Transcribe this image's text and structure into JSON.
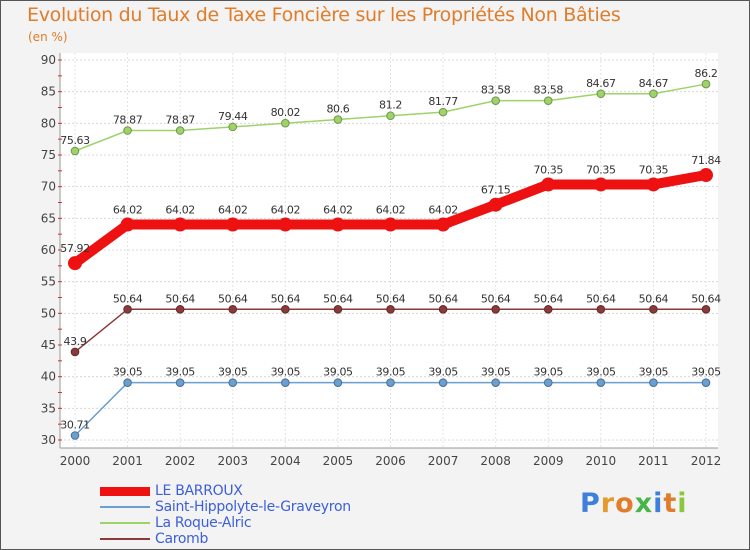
{
  "title": "Evolution du Taux de Taxe Foncière sur les Propriétés Non Bâties",
  "unit_label": "(en %)",
  "logo": {
    "text": "Proxiti",
    "letters": [
      {
        "char": "P",
        "color": "#3d7fd9"
      },
      {
        "char": "r",
        "color": "#e69a2c"
      },
      {
        "char": "o",
        "color": "#e07c2a"
      },
      {
        "char": "x",
        "color": "#47b548"
      },
      {
        "char": "i",
        "color": "#3d7fd9"
      },
      {
        "char": "t",
        "color": "#e07c2a"
      },
      {
        "char": "i",
        "color": "#8cc63f"
      }
    ]
  },
  "chart_data": {
    "type": "line",
    "title": "Evolution du Taux de Taxe Foncière sur les Propriétés Non Bâties",
    "ylabel": "(en %)",
    "xlabel": "",
    "ylim": [
      30,
      90
    ],
    "yticks": [
      30,
      35,
      40,
      45,
      50,
      55,
      60,
      65,
      70,
      75,
      80,
      85,
      90
    ],
    "grid": true,
    "legend_position": "bottom-left",
    "x": [
      "2000",
      "2001",
      "2002",
      "2003",
      "2004",
      "2005",
      "2006",
      "2007",
      "2008",
      "2009",
      "2010",
      "2011",
      "2012"
    ],
    "series": [
      {
        "name": "LE BARROUX",
        "color": "#ee1111",
        "emphasis": true,
        "values": [
          57.92,
          64.02,
          64.02,
          64.02,
          64.02,
          64.02,
          64.02,
          64.02,
          67.15,
          70.35,
          70.35,
          70.35,
          71.84
        ],
        "labels": [
          "57.92",
          "64.02",
          "64.02",
          "64.02",
          "64.02",
          "64.02",
          "64.02",
          "64.02",
          "67.15",
          "70.35",
          "70.35",
          "70.35",
          "71.84"
        ]
      },
      {
        "name": "Saint-Hippolyte-le-Graveyron",
        "color": "#6a9fcf",
        "emphasis": false,
        "values": [
          30.71,
          39.05,
          39.05,
          39.05,
          39.05,
          39.05,
          39.05,
          39.05,
          39.05,
          39.05,
          39.05,
          39.05,
          39.05
        ],
        "labels": [
          "30.71",
          "39.05",
          "39.05",
          "39.05",
          "39.05",
          "39.05",
          "39.05",
          "39.05",
          "39.05",
          "39.05",
          "39.05",
          "39.05",
          "39.05"
        ]
      },
      {
        "name": "La Roque-Alric",
        "color": "#9ed36a",
        "emphasis": false,
        "values": [
          75.63,
          78.87,
          78.87,
          79.44,
          80.02,
          80.6,
          81.2,
          81.77,
          83.58,
          83.58,
          84.67,
          84.67,
          86.2
        ],
        "labels": [
          "75.63",
          "78.87",
          "78.87",
          "79.44",
          "80.02",
          "80.6",
          "81.2",
          "81.77",
          "83.58",
          "83.58",
          "84.67",
          "84.67",
          "86.2"
        ]
      },
      {
        "name": "Caromb",
        "color": "#8b3a3a",
        "emphasis": false,
        "values": [
          43.9,
          50.64,
          50.64,
          50.64,
          50.64,
          50.64,
          50.64,
          50.64,
          50.64,
          50.64,
          50.64,
          50.64,
          50.64
        ],
        "labels": [
          "43.9",
          "50.64",
          "50.64",
          "50.64",
          "50.64",
          "50.64",
          "50.64",
          "50.64",
          "50.64",
          "50.64",
          "50.64",
          "50.64",
          "50.64"
        ]
      }
    ]
  }
}
